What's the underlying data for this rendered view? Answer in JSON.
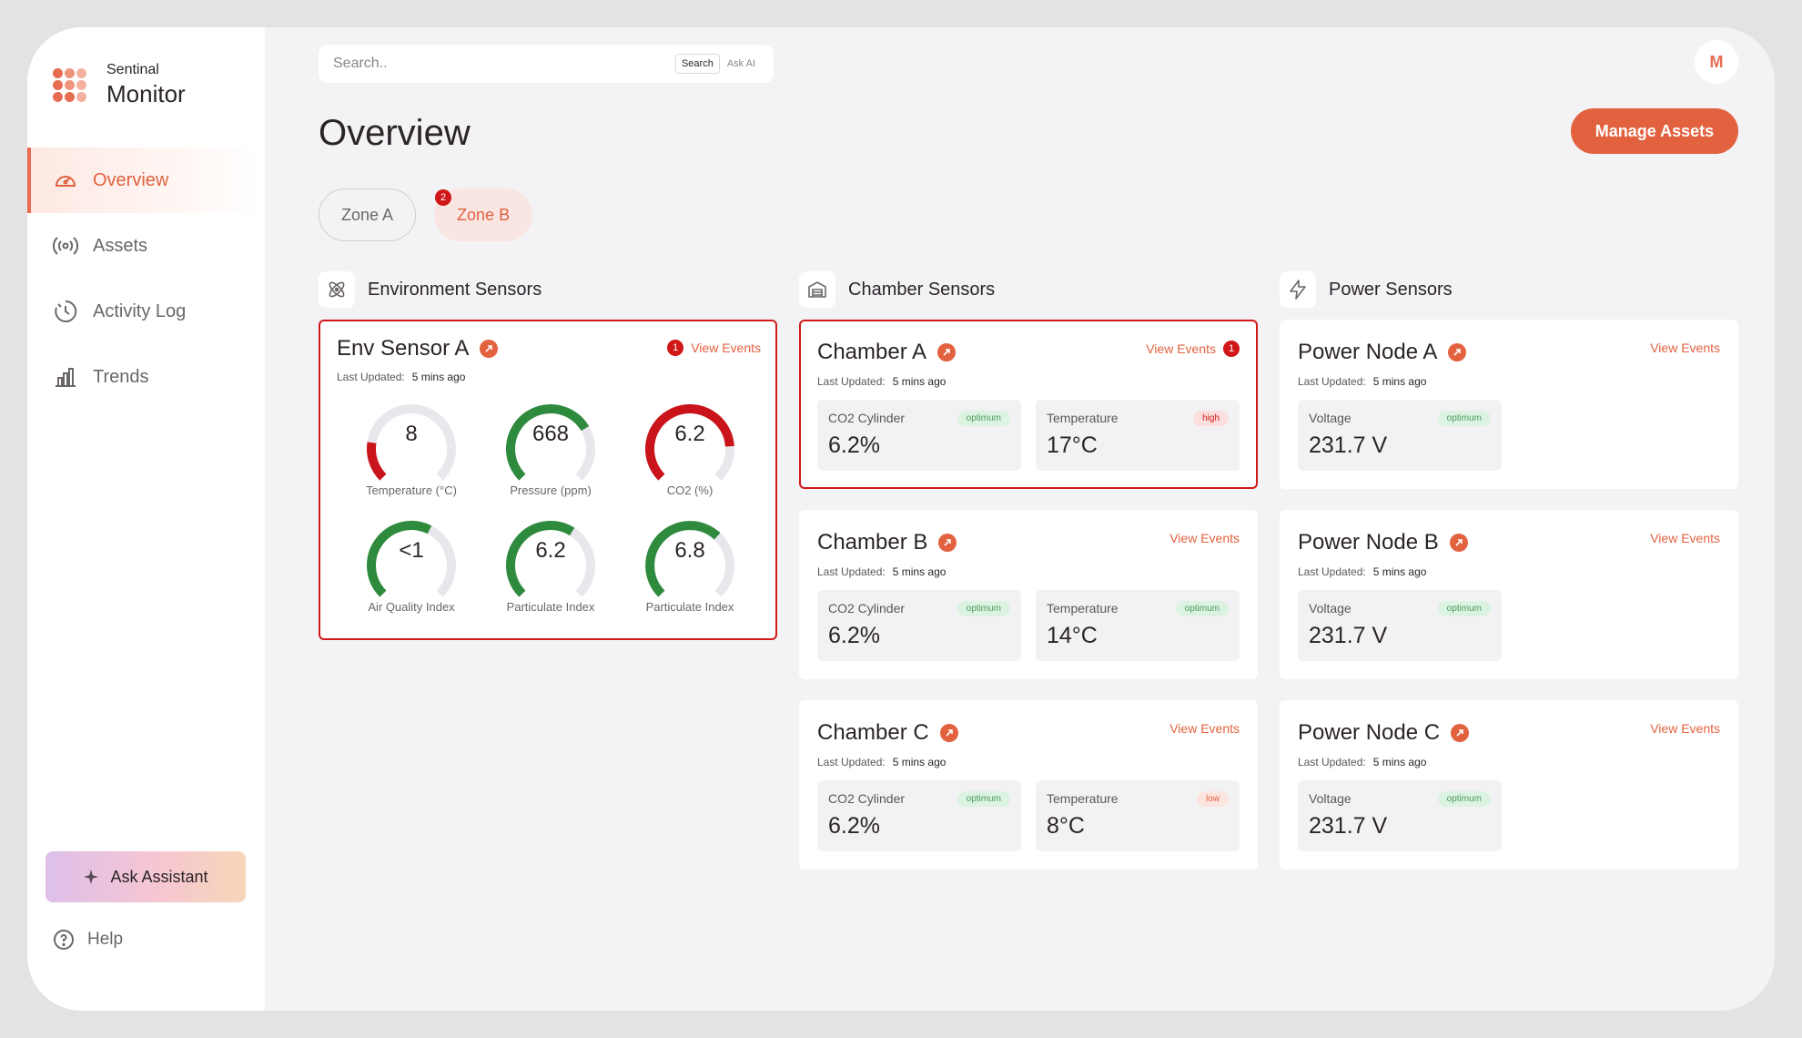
{
  "app": {
    "brand_small": "Sentinal",
    "brand_big": "Monitor"
  },
  "sidebar": {
    "items": [
      {
        "label": "Overview",
        "icon": "gauge-icon",
        "active": true
      },
      {
        "label": "Assets",
        "icon": "broadcast-icon",
        "active": false
      },
      {
        "label": "Activity Log",
        "icon": "clock-icon",
        "active": false
      },
      {
        "label": "Trends",
        "icon": "bar-chart-icon",
        "active": false
      }
    ],
    "assistant_label": "Ask Assistant",
    "help_label": "Help"
  },
  "search": {
    "placeholder": "Search..",
    "mode_search": "Search",
    "mode_ai": "Ask AI"
  },
  "user": {
    "initial": "M"
  },
  "header": {
    "title": "Overview",
    "manage_label": "Manage Assets"
  },
  "zones": [
    {
      "label": "Zone A",
      "badge": ""
    },
    {
      "label": "Zone B",
      "badge": "2"
    }
  ],
  "columns": {
    "env": "Environment Sensors",
    "chamber": "Chamber Sensors",
    "power": "Power Sensors"
  },
  "common": {
    "last_updated_label": "Last Updated:",
    "view_events": "View Events"
  },
  "env_sensor": {
    "title": "Env Sensor A",
    "updated": "5 mins ago",
    "badge": "1",
    "gauges": [
      {
        "value": "8",
        "label": "Temperature (°C)",
        "fill": 0.2,
        "color": "#c9141b"
      },
      {
        "value": "668",
        "label": "Pressure (ppm)",
        "fill": 0.72,
        "color": "#2e8b3e"
      },
      {
        "value": "6.2",
        "label": "CO2 (%)",
        "fill": 0.82,
        "color": "#c9141b"
      },
      {
        "value": "<1",
        "label": "Air Quality Index",
        "fill": 0.6,
        "color": "#2e8b3e"
      },
      {
        "value": "6.2",
        "label": "Particulate Index",
        "fill": 0.62,
        "color": "#2e8b3e"
      },
      {
        "value": "6.8",
        "label": "Particulate Index",
        "fill": 0.66,
        "color": "#2e8b3e"
      }
    ]
  },
  "chambers": [
    {
      "title": "Chamber A",
      "updated": "5 mins ago",
      "badge": "1",
      "co2_label": "CO2 Cylinder",
      "co2_value": "6.2%",
      "co2_status": "optimum",
      "temp_label": "Temperature",
      "temp_value": "17°C",
      "temp_status": "high"
    },
    {
      "title": "Chamber B",
      "updated": "5 mins ago",
      "badge": "",
      "co2_label": "CO2 Cylinder",
      "co2_value": "6.2%",
      "co2_status": "optimum",
      "temp_label": "Temperature",
      "temp_value": "14°C",
      "temp_status": "optimum"
    },
    {
      "title": "Chamber C",
      "updated": "5 mins ago",
      "badge": "",
      "co2_label": "CO2 Cylinder",
      "co2_value": "6.2%",
      "co2_status": "optimum",
      "temp_label": "Temperature",
      "temp_value": "8°C",
      "temp_status": "low"
    }
  ],
  "power_nodes": [
    {
      "title": "Power Node A",
      "updated": "5 mins ago",
      "volt_label": "Voltage",
      "volt_value": "231.7 V",
      "volt_status": "optimum"
    },
    {
      "title": "Power Node B",
      "updated": "5 mins ago",
      "volt_label": "Voltage",
      "volt_value": "231.7 V",
      "volt_status": "optimum"
    },
    {
      "title": "Power Node C",
      "updated": "5 mins ago",
      "volt_label": "Voltage",
      "volt_value": "231.7 V",
      "volt_status": "optimum"
    }
  ]
}
